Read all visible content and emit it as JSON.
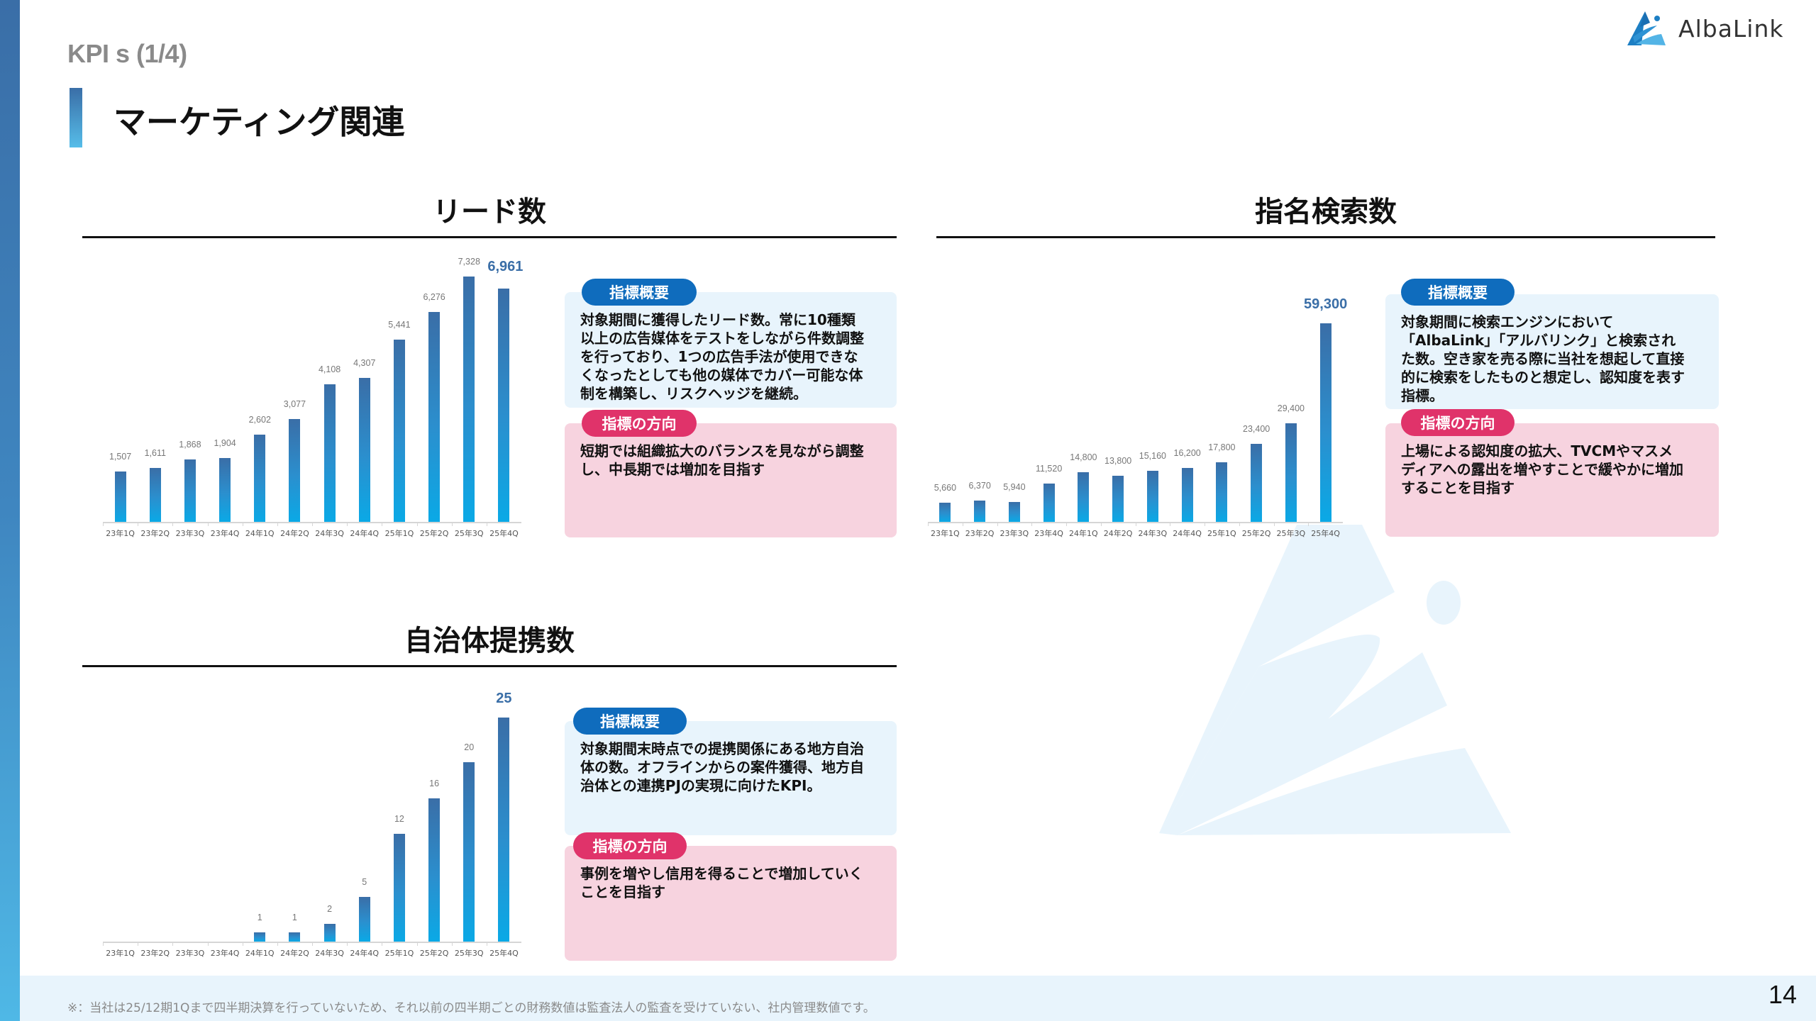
{
  "header": {
    "kpi_label": "KPI s (1/4)",
    "page_title": "マーケティング関連",
    "logo_text": "AlbaLink"
  },
  "colors": {
    "accent_dark_blue": "#3a6ea7",
    "accent_light_blue": "#0aa9e6",
    "badge_blue": "#0f6cbd",
    "badge_pink": "#e0336a",
    "box_blue_bg": "#e8f4fc",
    "box_pink_bg": "#f7d3df"
  },
  "sections": {
    "leads": {
      "title": "リード数",
      "overview_label": "指標概要",
      "overview_text": "対象期間に獲得したリード数。常に10種類\n以上の広告媒体をテストをしながら件数調整\nを行っており、1つの広告手法が使用できな\nくなったとしても他の媒体でカバー可能な体\n制を構築し、リスクヘッジを継続。",
      "direction_label": "指標の方向",
      "direction_text": "短期では組織拡大のバランスを見ながら調整\nし、中長期では増加を目指す"
    },
    "search": {
      "title": "指名検索数",
      "overview_label": "指標概要",
      "overview_text": "対象期間に検索エンジンにおいて\n「AlbaLink」「アルバリンク」と検索され\nた数。空き家を売る際に当社を想起して直接\n的に検索をしたものと想定し、認知度を表す\n指標。",
      "direction_label": "指標の方向",
      "direction_text": "上場による認知度の拡大、TVCMやマスメ\nディアへの露出を増やすことで緩やかに増加\nすることを目指す"
    },
    "municipalities": {
      "title": "自治体提携数",
      "overview_label": "指標概要",
      "overview_text": "対象期間末時点での提携関係にある地方自治\n体の数。オフラインからの案件獲得、地方自\n治体との連携PJの実現に向けたKPI。",
      "direction_label": "指標の方向",
      "direction_text": "事例を増やし信用を得ることで増加していく\nことを目指す"
    }
  },
  "chart_data": [
    {
      "type": "bar",
      "title": "リード数",
      "categories": [
        "23年1Q",
        "23年2Q",
        "23年3Q",
        "23年4Q",
        "24年1Q",
        "24年2Q",
        "24年3Q",
        "24年4Q",
        "25年1Q",
        "25年2Q",
        "25年3Q",
        "25年4Q"
      ],
      "values": [
        1507,
        1611,
        1868,
        1904,
        2602,
        3077,
        4108,
        4307,
        5441,
        6276,
        7328,
        6961
      ],
      "labels": [
        "1,507",
        "1,611",
        "1,868",
        "1,904",
        "2,602",
        "3,077",
        "4,108",
        "4,307",
        "5,441",
        "6,276",
        "7,328",
        "6,961"
      ],
      "highlight_index": 11,
      "xlabel": "",
      "ylabel": "",
      "ylim": [
        0,
        7328
      ],
      "grid": false,
      "legend": null
    },
    {
      "type": "bar",
      "title": "指名検索数",
      "categories": [
        "23年1Q",
        "23年2Q",
        "23年3Q",
        "23年4Q",
        "24年1Q",
        "24年2Q",
        "24年3Q",
        "24年4Q",
        "25年1Q",
        "25年2Q",
        "25年3Q",
        "25年4Q"
      ],
      "values": [
        5660,
        6370,
        5940,
        11520,
        14800,
        13800,
        15160,
        16200,
        17800,
        23400,
        29400,
        59300
      ],
      "labels": [
        "5,660",
        "6,370",
        "5,940",
        "11,520",
        "14,800",
        "13,800",
        "15,160",
        "16,200",
        "17,800",
        "23,400",
        "29,400",
        "59,300"
      ],
      "highlight_index": 11,
      "xlabel": "",
      "ylabel": "",
      "ylim": [
        0,
        59300
      ],
      "grid": false,
      "legend": null
    },
    {
      "type": "bar",
      "title": "自治体提携数",
      "categories": [
        "23年1Q",
        "23年2Q",
        "23年3Q",
        "23年4Q",
        "24年1Q",
        "24年2Q",
        "24年3Q",
        "24年4Q",
        "25年1Q",
        "25年2Q",
        "25年3Q",
        "25年4Q"
      ],
      "values": [
        0,
        0,
        0,
        0,
        1,
        1,
        2,
        5,
        12,
        16,
        20,
        25
      ],
      "labels": [
        "",
        "",
        "",
        "",
        "1",
        "1",
        "2",
        "5",
        "12",
        "16",
        "20",
        "25"
      ],
      "highlight_index": 11,
      "xlabel": "",
      "ylabel": "",
      "ylim": [
        0,
        25
      ],
      "grid": false,
      "legend": null
    }
  ],
  "footer": {
    "note": "※：当社は25/12期1Qまで四半期決算を行っていないため、それ以前の四半期ごとの財務数値は監査法人の監査を受けていない、社内管理数値です。",
    "page_number": "14"
  }
}
